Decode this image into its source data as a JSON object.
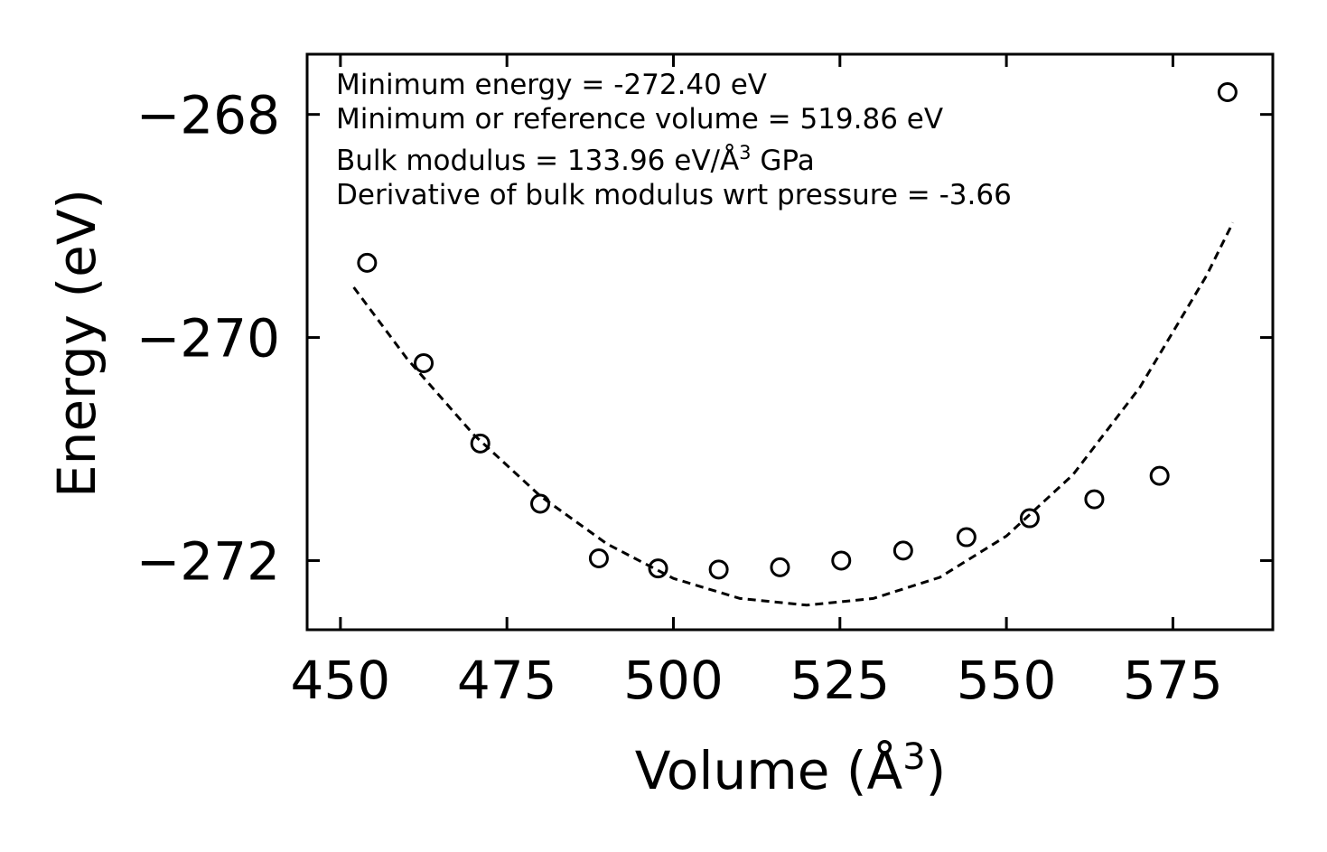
{
  "chart_data": {
    "type": "scatter",
    "xlabel": "Volume (Å",
    "xlabel_sup": "3",
    "xlabel_end": ")",
    "ylabel": "Energy (eV)",
    "xlim": [
      445,
      590
    ],
    "ylim": [
      -272.62,
      -267.46
    ],
    "xticks": [
      450,
      475,
      500,
      525,
      550,
      575
    ],
    "xtick_labels": [
      "450",
      "475",
      "500",
      "525",
      "550",
      "575"
    ],
    "yticks": [
      -268,
      -270,
      -272
    ],
    "ytick_labels": [
      "−268",
      "−270",
      "−272"
    ],
    "grid": false,
    "annotations": [
      {
        "text": "Minimum energy = -272.40 eV"
      },
      {
        "text": "Minimum or reference volume = 519.86 eV"
      },
      {
        "text": "Bulk modulus = 133.96 eV/Å",
        "sup": "3",
        "after": " GPa"
      },
      {
        "text": "Derivative of bulk modulus wrt pressure = -3.66"
      }
    ],
    "series": [
      {
        "kind": "points",
        "marker": "open-circle",
        "color": "#000000",
        "x": [
          454.0,
          462.5,
          471.0,
          480.0,
          488.8,
          497.7,
          506.8,
          516.0,
          525.2,
          534.5,
          544.0,
          553.5,
          563.2,
          573.0,
          583.2
        ],
        "y": [
          -269.33,
          -270.23,
          -270.95,
          -271.49,
          -271.98,
          -272.07,
          -272.08,
          -272.06,
          -272.0,
          -271.91,
          -271.79,
          -271.62,
          -271.45,
          -271.24,
          -267.8
        ]
      },
      {
        "kind": "fit",
        "style": "dashed",
        "color": "#000000",
        "x": [
          452,
          460,
          470,
          480,
          490,
          500,
          510,
          520,
          530,
          540,
          550,
          560,
          570,
          580,
          584
        ],
        "y": [
          -269.55,
          -270.19,
          -270.87,
          -271.42,
          -271.85,
          -272.16,
          -272.34,
          -272.4,
          -272.34,
          -272.15,
          -271.78,
          -271.23,
          -270.45,
          -269.45,
          -268.97
        ]
      }
    ]
  }
}
